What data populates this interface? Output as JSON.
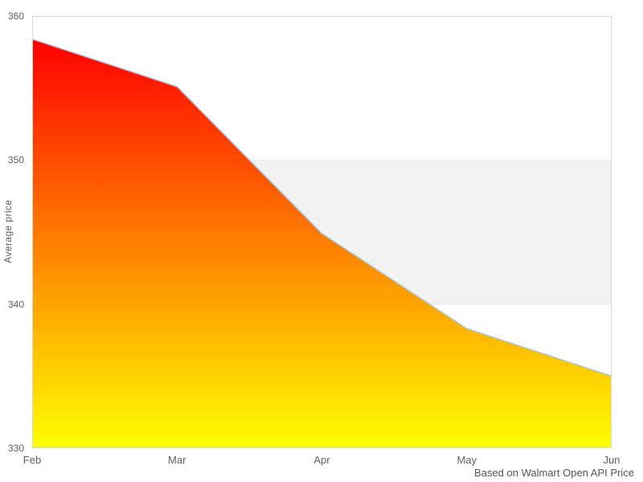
{
  "chart_data": {
    "type": "area",
    "title": "",
    "x": [
      "Feb",
      "Mar",
      "Apr",
      "May",
      "Jun"
    ],
    "series": [
      {
        "name": "Average price",
        "values": [
          358.4,
          355.1,
          344.9,
          338.3,
          335.0
        ]
      }
    ],
    "xlabel": "",
    "ylabel": "Average price",
    "ylim": [
      330,
      360
    ],
    "yticks": [
      360,
      350,
      340,
      330
    ],
    "grid": false,
    "legend": "none",
    "plot_band": {
      "from": 340,
      "to": 350,
      "fill": "#f3f3f3",
      "edge": "#e6e6e6"
    },
    "area_gradient_top": "#ff0000",
    "area_gradient_bottom": "#ffff00",
    "line_color": "#a5c3de",
    "plot_border_color": "#d8d8d8",
    "caption": "Based on Walmart Open API Price"
  }
}
